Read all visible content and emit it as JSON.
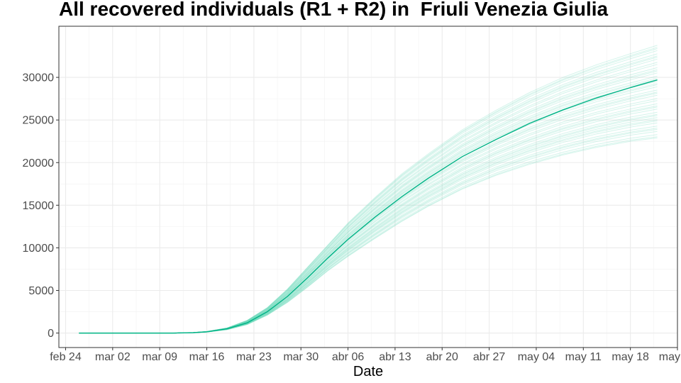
{
  "chart_data": {
    "type": "line",
    "title": "All recovered individuals (R1 + R2) in  Friuli Venezia Giulia",
    "xlabel": "Date",
    "ylabel": "",
    "x_ticks": [
      "feb 24",
      "mar 02",
      "mar 09",
      "mar 16",
      "mar 23",
      "mar 30",
      "abr 06",
      "abr 13",
      "abr 20",
      "abr 27",
      "may 04",
      "may 11",
      "may 18",
      "may 25"
    ],
    "x_range": [
      "2020-02-23",
      "2020-05-25"
    ],
    "y_ticks": [
      "0",
      "5000",
      "10000",
      "15000",
      "20000",
      "25000",
      "30000"
    ],
    "ylim": [
      -1700,
      36000
    ],
    "grid": true,
    "line_color": "#00b386",
    "ensemble_band_color": "#66d9b8",
    "x_start": "2020-02-26",
    "x_end": "2020-05-22",
    "series": [
      {
        "x": [
          "2020-02-26",
          "2020-03-04",
          "2020-03-11",
          "2020-03-14",
          "2020-03-16",
          "2020-03-19",
          "2020-03-22",
          "2020-03-25",
          "2020-03-28",
          "2020-03-31",
          "2020-04-03",
          "2020-04-06",
          "2020-04-10",
          "2020-04-14",
          "2020-04-18",
          "2020-04-23",
          "2020-04-28",
          "2020-05-03",
          "2020-05-08",
          "2020-05-13",
          "2020-05-18",
          "2020-05-22"
        ],
        "values": [
          0,
          0,
          0,
          50,
          150,
          500,
          1200,
          2500,
          4300,
          6500,
          8800,
          11000,
          13600,
          16000,
          18200,
          20700,
          22700,
          24600,
          26200,
          27600,
          28800,
          29700
        ]
      }
    ],
    "ensemble_upper": [
      0,
      0,
      0,
      60,
      180,
      600,
      1500,
      3000,
      5200,
      7800,
      10400,
      13000,
      16000,
      18800,
      21200,
      24000,
      26300,
      28400,
      30200,
      31700,
      33000,
      34000
    ],
    "ensemble_lower": [
      0,
      0,
      0,
      40,
      120,
      400,
      1000,
      2100,
      3600,
      5400,
      7300,
      9000,
      11100,
      13100,
      14900,
      16900,
      18500,
      19800,
      20900,
      21800,
      22500,
      22900
    ]
  }
}
